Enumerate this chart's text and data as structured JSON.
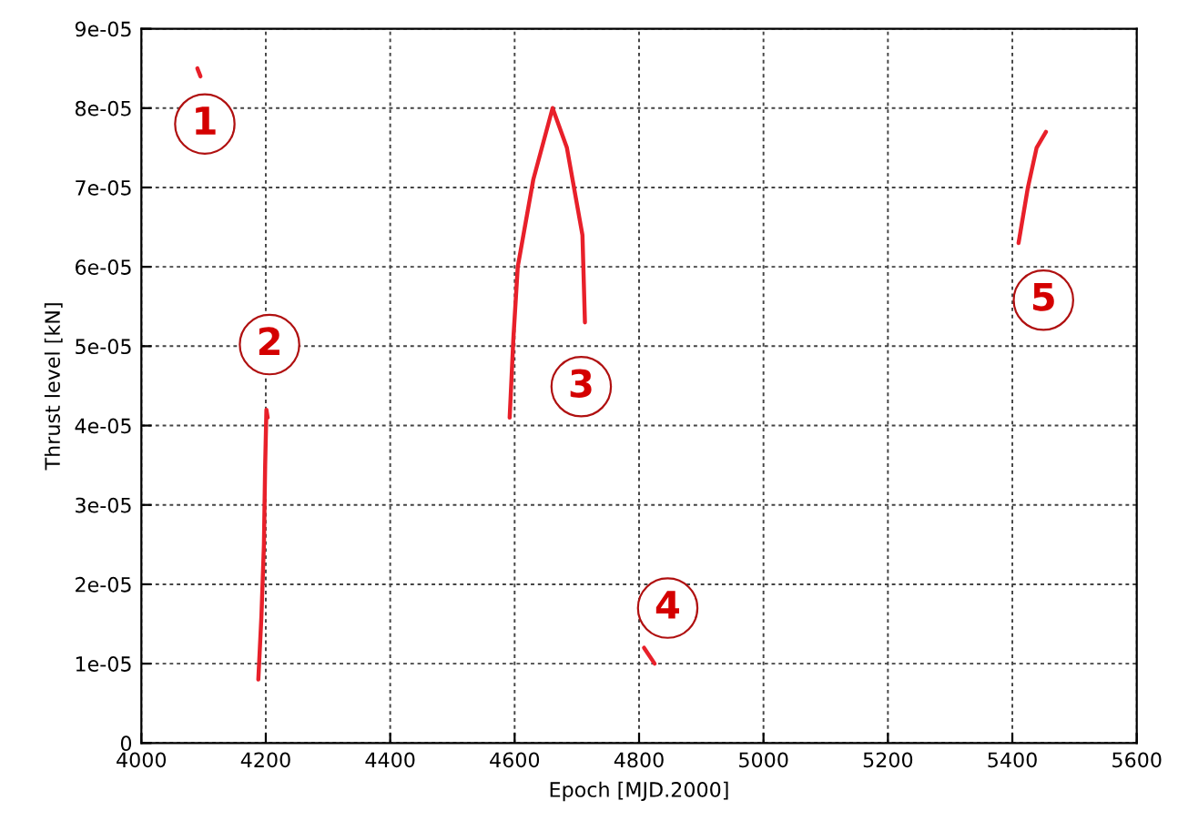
{
  "chart_data": {
    "type": "line",
    "xlabel": "Epoch [MJD.2000]",
    "ylabel": "Thrust level [kN]",
    "series": [
      {
        "color": "#e8202a",
        "x": [
          4090,
          4095
        ],
        "values": [
          8.5e-05,
          8.4e-05
        ]
      },
      {
        "color": "#e8202a",
        "x": [
          4188,
          4193,
          4197,
          4199,
          4201,
          4203
        ],
        "values": [
          8e-06,
          1.6e-05,
          2.5e-05,
          3.5e-05,
          4.2e-05,
          4.1e-05
        ]
      },
      {
        "color": "#e8202a",
        "x": [
          4592,
          4598,
          4605,
          4630,
          4661,
          4684,
          4709,
          4713
        ],
        "values": [
          4.1e-05,
          5.1e-05,
          6e-05,
          7.1e-05,
          8e-05,
          7.5e-05,
          6.4e-05,
          5.3e-05
        ]
      },
      {
        "color": "#e8202a",
        "x": [
          4808,
          4825
        ],
        "values": [
          1.2e-05,
          1e-05
        ]
      },
      {
        "color": "#e8202a",
        "x": [
          5410,
          5425,
          5439,
          5454
        ],
        "values": [
          6.3e-05,
          7e-05,
          7.5e-05,
          7.7e-05
        ]
      }
    ],
    "annotations": [
      {
        "text": "1",
        "x": 4102,
        "y": 7.8e-05
      },
      {
        "text": "2",
        "x": 4206,
        "y": 5.02e-05
      },
      {
        "text": "3",
        "x": 4707,
        "y": 4.49e-05
      },
      {
        "text": "4",
        "x": 4846,
        "y": 1.7e-05
      },
      {
        "text": "5",
        "x": 5450,
        "y": 5.58e-05
      }
    ],
    "xlim": [
      4000,
      5600
    ],
    "xticks": [
      4000,
      4200,
      4400,
      4600,
      4800,
      5000,
      5200,
      5400,
      5600
    ],
    "ylim": [
      0,
      9e-05
    ],
    "yticks": [
      0,
      {
        "value": 1e-05,
        "label": "1e-05"
      },
      {
        "value": 2e-05,
        "label": "2e-05"
      },
      {
        "value": 3e-05,
        "label": "3e-05"
      },
      {
        "value": 4e-05,
        "label": "4e-05"
      },
      {
        "value": 5e-05,
        "label": "5e-05"
      },
      {
        "value": 6e-05,
        "label": "6e-05"
      },
      {
        "value": 7e-05,
        "label": "7e-05"
      },
      {
        "value": 8e-05,
        "label": "8e-05"
      },
      {
        "value": 9e-05,
        "label": "9e-05"
      }
    ],
    "grid": true,
    "line_style": "solid",
    "marker": "none",
    "legend": false
  }
}
